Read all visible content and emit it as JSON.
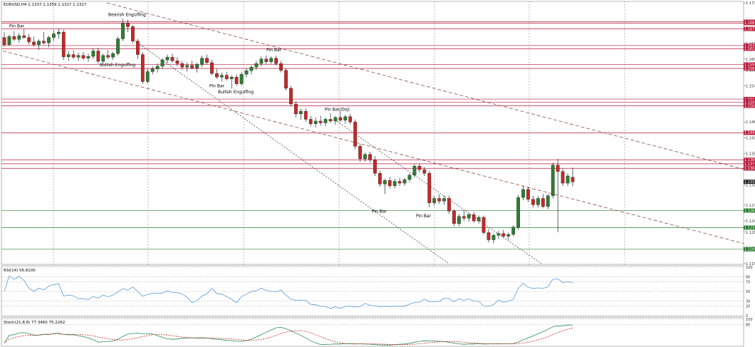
{
  "header": {
    "main": "EURUSD,H4  1.1337 1.1359 1.1317 1.1327",
    "rsi": "RSI(14) 56.8100",
    "stoch": "Stoch(21,8,8) 77.3460 75.2262"
  },
  "colors": {
    "bull": "#2e7d32",
    "bear": "#c62828",
    "wick": "#000000",
    "resistance": "#b71c3c",
    "support": "#2e7d32",
    "trend": "#8c4a4a",
    "rsi_line": "#5b9bd5",
    "stoch_main": "#2e8b57",
    "stoch_signal": "#c62828"
  },
  "annotations": [
    {
      "text": "Pin Bar",
      "id": "pin-bar-1"
    },
    {
      "text": "Bearish Engulfing",
      "id": "bearish-engulfing"
    },
    {
      "text": "Bullish Engulfing",
      "id": "bullish-engulfing-1"
    },
    {
      "text": "Pin Bar",
      "id": "pin-bar-2"
    },
    {
      "text": "Pin Bar",
      "id": "pin-bar-3"
    },
    {
      "text": "Bullish Engulfing",
      "id": "bullish-engulfing-2"
    },
    {
      "text": "Pin Bar/Doji",
      "id": "pin-bar-doji"
    },
    {
      "text": "Pin Bar",
      "id": "pin-bar-4"
    },
    {
      "text": "Pin Bar",
      "id": "pin-bar-5"
    }
  ],
  "chart_data": {
    "type": "candlestick",
    "symbol": "EURUSD",
    "timeframe": "H4",
    "ylim": [
      1.1145,
      1.1725
    ],
    "y_ticks": [
      1.1725,
      1.168,
      1.1635,
      1.16,
      1.1575,
      1.154,
      1.1495,
      1.146,
      1.1425,
      1.139,
      1.1355,
      1.132,
      1.1275,
      1.124,
      1.1215,
      1.118,
      1.1145
    ],
    "resistance_levels": [
      1.1683,
      1.168,
      1.1667,
      1.163,
      1.1623,
      1.1588,
      1.1579,
      1.1511,
      1.1504,
      1.1496,
      1.1436,
      1.1376,
      1.1367,
      1.1357
    ],
    "support_levels": [
      1.1263,
      1.1225,
      1.1177
    ],
    "current_price": 1.1327,
    "candles": [
      [
        1.1648,
        1.166,
        1.1628,
        1.1632
      ],
      [
        1.1632,
        1.1654,
        1.1629,
        1.165
      ],
      [
        1.165,
        1.1662,
        1.164,
        1.1644
      ],
      [
        1.1644,
        1.1658,
        1.1636,
        1.1652
      ],
      [
        1.1652,
        1.1666,
        1.1645,
        1.1648
      ],
      [
        1.1648,
        1.1656,
        1.1632,
        1.1638
      ],
      [
        1.1638,
        1.165,
        1.1628,
        1.1632
      ],
      [
        1.1632,
        1.1644,
        1.162,
        1.164
      ],
      [
        1.164,
        1.166,
        1.1632,
        1.1636
      ],
      [
        1.1636,
        1.1652,
        1.1626,
        1.1648
      ],
      [
        1.1648,
        1.1664,
        1.164,
        1.1656
      ],
      [
        1.1656,
        1.1668,
        1.1645,
        1.166
      ],
      [
        1.166,
        1.1665,
        1.1598,
        1.1605
      ],
      [
        1.1605,
        1.1618,
        1.1596,
        1.161
      ],
      [
        1.161,
        1.162,
        1.16,
        1.1604
      ],
      [
        1.1604,
        1.1614,
        1.1596,
        1.1608
      ],
      [
        1.1608,
        1.1616,
        1.1598,
        1.1602
      ],
      [
        1.1602,
        1.1612,
        1.1594,
        1.1606
      ],
      [
        1.1606,
        1.1624,
        1.16,
        1.1618
      ],
      [
        1.1618,
        1.1625,
        1.159,
        1.1595
      ],
      [
        1.1595,
        1.1612,
        1.1588,
        1.1608
      ],
      [
        1.1608,
        1.162,
        1.16,
        1.1604
      ],
      [
        1.1604,
        1.1616,
        1.1598,
        1.1612
      ],
      [
        1.1612,
        1.165,
        1.1608,
        1.1645
      ],
      [
        1.1645,
        1.169,
        1.164,
        1.168
      ],
      [
        1.168,
        1.1688,
        1.166,
        1.1672
      ],
      [
        1.1672,
        1.1676,
        1.1635,
        1.164
      ],
      [
        1.164,
        1.1645,
        1.16,
        1.161
      ],
      [
        1.161,
        1.1615,
        1.1545,
        1.155
      ],
      [
        1.155,
        1.1578,
        1.1546,
        1.1572
      ],
      [
        1.1572,
        1.1584,
        1.1566,
        1.1578
      ],
      [
        1.1578,
        1.159,
        1.157,
        1.1584
      ],
      [
        1.1584,
        1.1602,
        1.1578,
        1.1598
      ],
      [
        1.1598,
        1.161,
        1.159,
        1.1604
      ],
      [
        1.1604,
        1.1612,
        1.1592,
        1.1596
      ],
      [
        1.1596,
        1.1604,
        1.1584,
        1.159
      ],
      [
        1.159,
        1.1596,
        1.1576,
        1.1582
      ],
      [
        1.1582,
        1.1592,
        1.1572,
        1.1586
      ],
      [
        1.1586,
        1.1596,
        1.1578,
        1.158
      ],
      [
        1.158,
        1.1592,
        1.157,
        1.1588
      ],
      [
        1.1588,
        1.1608,
        1.1582,
        1.1602
      ],
      [
        1.1602,
        1.161,
        1.1588,
        1.1592
      ],
      [
        1.1592,
        1.1598,
        1.1564,
        1.1568
      ],
      [
        1.1568,
        1.1578,
        1.1556,
        1.156
      ],
      [
        1.156,
        1.157,
        1.155,
        1.1564
      ],
      [
        1.1564,
        1.1572,
        1.1552,
        1.1556
      ],
      [
        1.1556,
        1.1564,
        1.1534,
        1.156
      ],
      [
        1.156,
        1.1566,
        1.154,
        1.1545
      ],
      [
        1.1545,
        1.1572,
        1.154,
        1.1566
      ],
      [
        1.1566,
        1.158,
        1.156,
        1.1574
      ],
      [
        1.1574,
        1.1586,
        1.1566,
        1.1582
      ],
      [
        1.1582,
        1.1596,
        1.1576,
        1.159
      ],
      [
        1.159,
        1.1606,
        1.1584,
        1.16
      ],
      [
        1.16,
        1.1608,
        1.1588,
        1.1594
      ],
      [
        1.1594,
        1.1606,
        1.1588,
        1.1602
      ],
      [
        1.1602,
        1.1608,
        1.1586,
        1.159
      ],
      [
        1.159,
        1.1596,
        1.157,
        1.1575
      ],
      [
        1.1575,
        1.158,
        1.153,
        1.1535
      ],
      [
        1.1535,
        1.154,
        1.1495,
        1.15
      ],
      [
        1.15,
        1.1506,
        1.147,
        1.1478
      ],
      [
        1.1478,
        1.149,
        1.1465,
        1.1484
      ],
      [
        1.1484,
        1.149,
        1.146,
        1.1466
      ],
      [
        1.1466,
        1.1474,
        1.145,
        1.1456
      ],
      [
        1.1456,
        1.147,
        1.1448,
        1.1462
      ],
      [
        1.1462,
        1.1474,
        1.1452,
        1.1458
      ],
      [
        1.1458,
        1.147,
        1.145,
        1.1466
      ],
      [
        1.1466,
        1.148,
        1.1458,
        1.1462
      ],
      [
        1.1462,
        1.1474,
        1.1454,
        1.147
      ],
      [
        1.147,
        1.1484,
        1.146,
        1.1464
      ],
      [
        1.1464,
        1.1476,
        1.1456,
        1.1472
      ],
      [
        1.1472,
        1.1478,
        1.1455,
        1.146
      ],
      [
        1.146,
        1.1466,
        1.14,
        1.1406
      ],
      [
        1.1406,
        1.1412,
        1.1372,
        1.1378
      ],
      [
        1.1378,
        1.1392,
        1.1372,
        1.1388
      ],
      [
        1.1388,
        1.1394,
        1.137,
        1.1376
      ],
      [
        1.1376,
        1.1384,
        1.134,
        1.1346
      ],
      [
        1.1346,
        1.1352,
        1.1316,
        1.1322
      ],
      [
        1.1322,
        1.1334,
        1.13,
        1.133
      ],
      [
        1.133,
        1.1338,
        1.1312,
        1.1318
      ],
      [
        1.1318,
        1.1334,
        1.1312,
        1.1328
      ],
      [
        1.1328,
        1.1336,
        1.1318,
        1.1324
      ],
      [
        1.1324,
        1.1336,
        1.1318,
        1.1332
      ],
      [
        1.1332,
        1.1346,
        1.1326,
        1.1342
      ],
      [
        1.1342,
        1.1366,
        1.1336,
        1.1362
      ],
      [
        1.1362,
        1.1368,
        1.1348,
        1.1354
      ],
      [
        1.1354,
        1.136,
        1.134,
        1.1346
      ],
      [
        1.1346,
        1.1352,
        1.127,
        1.128
      ],
      [
        1.128,
        1.1296,
        1.1274,
        1.129
      ],
      [
        1.129,
        1.13,
        1.1278,
        1.1284
      ],
      [
        1.1284,
        1.1296,
        1.1276,
        1.129
      ],
      [
        1.129,
        1.1296,
        1.1256,
        1.1262
      ],
      [
        1.1262,
        1.1266,
        1.1228,
        1.1234
      ],
      [
        1.1234,
        1.1256,
        1.1228,
        1.125
      ],
      [
        1.125,
        1.1262,
        1.124,
        1.1246
      ],
      [
        1.1246,
        1.1258,
        1.1238,
        1.1254
      ],
      [
        1.1254,
        1.126,
        1.1236,
        1.124
      ],
      [
        1.124,
        1.1252,
        1.1234,
        1.1248
      ],
      [
        1.1248,
        1.1252,
        1.121,
        1.1214
      ],
      [
        1.1214,
        1.1222,
        1.1192,
        1.1198
      ],
      [
        1.1198,
        1.1212,
        1.119,
        1.1208
      ],
      [
        1.1208,
        1.1218,
        1.12,
        1.1212
      ],
      [
        1.1212,
        1.122,
        1.1202,
        1.1206
      ],
      [
        1.1206,
        1.1214,
        1.1198,
        1.121
      ],
      [
        1.121,
        1.123,
        1.1206,
        1.1226
      ],
      [
        1.1226,
        1.1298,
        1.122,
        1.1292
      ],
      [
        1.1292,
        1.1318,
        1.1286,
        1.131
      ],
      [
        1.131,
        1.1316,
        1.1282,
        1.1288
      ],
      [
        1.1288,
        1.1296,
        1.127,
        1.1276
      ],
      [
        1.1276,
        1.1296,
        1.127,
        1.129
      ],
      [
        1.129,
        1.13,
        1.1268,
        1.1272
      ],
      [
        1.1272,
        1.13,
        1.1266,
        1.1296
      ],
      [
        1.1296,
        1.137,
        1.129,
        1.1364
      ],
      [
        1.1364,
        1.1378,
        1.1215,
        1.135
      ],
      [
        1.135,
        1.1356,
        1.1318,
        1.1324
      ],
      [
        1.1324,
        1.1346,
        1.1318,
        1.134
      ],
      [
        1.1337,
        1.1359,
        1.1317,
        1.1327
      ]
    ],
    "rsi": {
      "levels": [
        100,
        80,
        70,
        50,
        30,
        20,
        0
      ],
      "ylim": [
        0,
        100
      ]
    },
    "stoch": {
      "levels": [
        100,
        80
      ],
      "ylim": [
        0,
        100
      ]
    }
  }
}
